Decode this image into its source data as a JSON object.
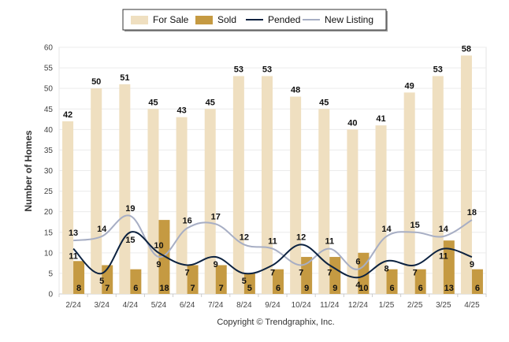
{
  "chart_data": {
    "type": "bar",
    "categories": [
      "2/24",
      "3/24",
      "4/24",
      "5/24",
      "6/24",
      "7/24",
      "8/24",
      "9/24",
      "10/24",
      "11/24",
      "12/24",
      "1/25",
      "2/25",
      "3/25",
      "4/25"
    ],
    "series": [
      {
        "name": "For Sale",
        "kind": "bar",
        "color": "#efdfc0",
        "values": [
          42,
          50,
          51,
          45,
          43,
          45,
          53,
          53,
          48,
          45,
          40,
          41,
          49,
          53,
          58
        ]
      },
      {
        "name": "Sold",
        "kind": "bar",
        "color": "#c59a42",
        "values": [
          8,
          7,
          6,
          18,
          7,
          7,
          5,
          6,
          9,
          9,
          10,
          6,
          6,
          13,
          6
        ]
      },
      {
        "name": "Pended",
        "kind": "line",
        "color": "#0c2240",
        "values": [
          11,
          5,
          15,
          10,
          7,
          9,
          5,
          7,
          12,
          7,
          4,
          8,
          7,
          11,
          9
        ]
      },
      {
        "name": "New Listing",
        "kind": "line",
        "color": "#a7aec4",
        "values": [
          13,
          14,
          19,
          9,
          16,
          17,
          12,
          11,
          7,
          11,
          6,
          14,
          15,
          14,
          18
        ]
      }
    ],
    "title": "",
    "xlabel": "",
    "ylabel": "Number of Homes",
    "ylim": [
      0,
      60
    ],
    "yticks": [
      0,
      5,
      10,
      15,
      20,
      25,
      30,
      35,
      40,
      45,
      50,
      55,
      60
    ],
    "grid": true,
    "legend_position": "top-center"
  },
  "footer": "Copyright © Trendgraphix, Inc."
}
